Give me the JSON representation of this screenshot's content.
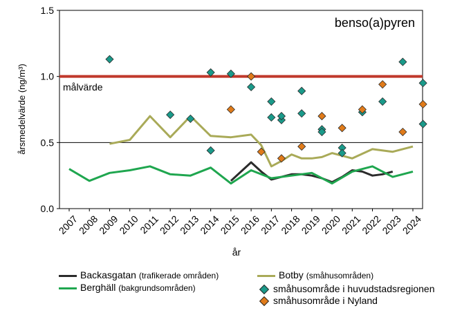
{
  "chart_data": {
    "type": "line",
    "title": "benso(a)pyren",
    "ylabel": "årsmedelvärde  (ng/m³)",
    "xlabel": "år",
    "ylim": [
      0.0,
      1.5
    ],
    "yticks": [
      "0.0",
      "0.5",
      "1.0",
      "1.5"
    ],
    "categories": [
      "2007",
      "2008",
      "2009",
      "2010",
      "2011",
      "2012",
      "2013",
      "2014",
      "2015",
      "2016",
      "2017",
      "2018",
      "2019",
      "2020",
      "2021",
      "2022",
      "2023",
      "2024"
    ],
    "target": {
      "label": "målvärde",
      "value": 1.0,
      "color": "#c0392b"
    },
    "reference_line": 0.5,
    "series": [
      {
        "name": "Backasgatan",
        "note": "(trafikerade områden)",
        "color": "#2b2b2b",
        "x": [
          2015.0,
          2015.5,
          2016.0,
          2016.5,
          2017.0,
          2017.5,
          2018.0,
          2018.5,
          2019.0,
          2019.5,
          2020.0,
          2020.5,
          2021.0,
          2021.5,
          2022.0,
          2022.5,
          2023.0
        ],
        "values": [
          0.21,
          0.28,
          0.35,
          0.28,
          0.22,
          0.24,
          0.26,
          0.26,
          0.25,
          0.23,
          0.2,
          0.24,
          0.29,
          0.28,
          0.25,
          0.26,
          0.28
        ]
      },
      {
        "name": "Berghäll",
        "note": "(bakgrundsområden)",
        "color": "#1fa64f",
        "x": [
          2007,
          2008,
          2009,
          2010,
          2011,
          2012,
          2013,
          2014,
          2015,
          2016,
          2017,
          2018,
          2019,
          2020,
          2021,
          2022,
          2023,
          2024
        ],
        "values": [
          0.3,
          0.21,
          0.27,
          0.29,
          0.32,
          0.26,
          0.25,
          0.31,
          0.19,
          0.29,
          0.23,
          0.25,
          0.27,
          0.19,
          0.28,
          0.32,
          0.24,
          0.28
        ]
      },
      {
        "name": "Botby",
        "note": "(småhusområden)",
        "color": "#a9aa58",
        "x": [
          2009,
          2010,
          2011,
          2012,
          2013,
          2014,
          2015,
          2016,
          2016.5,
          2017,
          2017.5,
          2018,
          2018.5,
          2019,
          2019.5,
          2020,
          2021,
          2022,
          2023,
          2024
        ],
        "values": [
          0.49,
          0.52,
          0.7,
          0.54,
          0.7,
          0.55,
          0.54,
          0.56,
          0.48,
          0.32,
          0.36,
          0.41,
          0.38,
          0.38,
          0.39,
          0.42,
          0.38,
          0.45,
          0.43,
          0.47
        ]
      }
    ],
    "markers": [
      {
        "name": "småhusområde i huvudstadsregionen",
        "color": "#1a9a8a",
        "points": [
          [
            2009,
            1.13
          ],
          [
            2012,
            0.71
          ],
          [
            2013,
            0.68
          ],
          [
            2014,
            1.03
          ],
          [
            2014,
            0.44
          ],
          [
            2015,
            1.02
          ],
          [
            2016,
            0.92
          ],
          [
            2017,
            0.81
          ],
          [
            2017,
            0.69
          ],
          [
            2017.5,
            0.67
          ],
          [
            2017.5,
            0.7
          ],
          [
            2018.5,
            0.89
          ],
          [
            2018.5,
            0.72
          ],
          [
            2019.5,
            0.6
          ],
          [
            2019.5,
            0.58
          ],
          [
            2020.5,
            0.46
          ],
          [
            2020.5,
            0.42
          ],
          [
            2021.5,
            0.73
          ],
          [
            2022.5,
            0.81
          ],
          [
            2023.5,
            1.11
          ],
          [
            2024.5,
            0.95
          ],
          [
            2024.5,
            0.64
          ]
        ]
      },
      {
        "name": "småhusområde i Nyland",
        "color": "#e07b1a",
        "points": [
          [
            2015,
            0.75
          ],
          [
            2016,
            1.0
          ],
          [
            2016.5,
            0.43
          ],
          [
            2017.5,
            0.38
          ],
          [
            2018.5,
            0.47
          ],
          [
            2019.5,
            0.7
          ],
          [
            2020.5,
            0.61
          ],
          [
            2021.5,
            0.75
          ],
          [
            2022.5,
            0.94
          ],
          [
            2023.5,
            0.58
          ],
          [
            2024.5,
            0.79
          ]
        ]
      }
    ],
    "legend": "bottom"
  }
}
